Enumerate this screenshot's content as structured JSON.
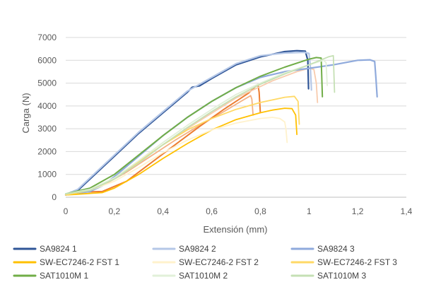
{
  "chart_data": {
    "type": "line",
    "title": "",
    "xlabel": "Extensión (mm)",
    "ylabel": "Carga (N)",
    "xlim": [
      0,
      1.4
    ],
    "ylim": [
      0,
      7000
    ],
    "xticks": [
      "0",
      "0,2",
      "0,4",
      "0,6",
      "0,8",
      "1",
      "1,2",
      "1,4"
    ],
    "xtick_values": [
      0,
      0.2,
      0.4,
      0.6,
      0.8,
      1.0,
      1.2,
      1.4
    ],
    "yticks": [
      "0",
      "1000",
      "2000",
      "3000",
      "4000",
      "5000",
      "6000",
      "7000"
    ],
    "ytick_values": [
      0,
      1000,
      2000,
      3000,
      4000,
      5000,
      6000,
      7000
    ],
    "grid": "horizontal",
    "legend_position": "bottom",
    "series": [
      {
        "name": "SA9824 1",
        "color": "#2f5597",
        "width": 2.2,
        "x": [
          0,
          0.05,
          0.1,
          0.2,
          0.3,
          0.4,
          0.5,
          0.52,
          0.55,
          0.6,
          0.7,
          0.8,
          0.9,
          0.95,
          0.985,
          0.995,
          0.998
        ],
        "y": [
          100,
          300,
          800,
          1800,
          2800,
          3700,
          4600,
          4820,
          4880,
          5200,
          5800,
          6150,
          6380,
          6420,
          6400,
          6000,
          4750
        ]
      },
      {
        "name": "SA9824 2",
        "color": "#b4c7e7",
        "width": 2.2,
        "x": [
          0,
          0.05,
          0.1,
          0.2,
          0.3,
          0.4,
          0.5,
          0.55,
          0.6,
          0.7,
          0.8,
          0.9,
          0.98,
          1.0,
          1.005,
          1.01
        ],
        "y": [
          120,
          350,
          850,
          1850,
          2850,
          3750,
          4650,
          4950,
          5250,
          5850,
          6200,
          6320,
          6350,
          6300,
          5800,
          4700
        ]
      },
      {
        "name": "SA9824 3",
        "color": "#8faadc",
        "width": 2.2,
        "x": [
          0,
          0.1,
          0.15,
          0.2,
          0.3,
          0.4,
          0.5,
          0.6,
          0.7,
          0.8,
          0.9,
          1.0,
          1.1,
          1.2,
          1.25,
          1.27,
          1.275,
          1.28
        ],
        "y": [
          100,
          250,
          500,
          900,
          1800,
          2700,
          3500,
          4200,
          4800,
          5250,
          5500,
          5650,
          5800,
          6000,
          6020,
          5950,
          5200,
          4400
        ]
      },
      {
        "name": "SW-EC7246-2 FST 1",
        "color": "#ffc000",
        "width": 1.8,
        "x": [
          0,
          0.15,
          0.2,
          0.3,
          0.4,
          0.5,
          0.6,
          0.7,
          0.8,
          0.85,
          0.9,
          0.93,
          0.945,
          0.95
        ],
        "y": [
          100,
          200,
          400,
          1000,
          1700,
          2350,
          2950,
          3400,
          3700,
          3820,
          3900,
          3880,
          3600,
          2750
        ]
      },
      {
        "name": "SW-EC7246-2 FST 2",
        "color": "#fff2cc",
        "width": 1.8,
        "x": [
          0,
          0.1,
          0.2,
          0.3,
          0.4,
          0.5,
          0.6,
          0.7,
          0.8,
          0.85,
          0.88,
          0.9,
          0.905,
          0.91
        ],
        "y": [
          100,
          300,
          700,
          1300,
          1950,
          2500,
          2950,
          3250,
          3450,
          3500,
          3450,
          3300,
          3000,
          2400
        ]
      },
      {
        "name": "SW-EC7246-2 FST 3",
        "color": "#ffd966",
        "width": 1.8,
        "x": [
          0,
          0.1,
          0.2,
          0.3,
          0.4,
          0.5,
          0.6,
          0.7,
          0.8,
          0.9,
          0.94,
          0.955,
          0.96
        ],
        "y": [
          100,
          300,
          800,
          1550,
          2300,
          2950,
          3450,
          3850,
          4150,
          4380,
          4420,
          4200,
          3200
        ]
      },
      {
        "name": "SAT1010M 1",
        "color": "#70ad47",
        "width": 2.0,
        "x": [
          0,
          0.1,
          0.2,
          0.3,
          0.4,
          0.5,
          0.6,
          0.7,
          0.8,
          0.9,
          1.0,
          1.03,
          1.05,
          1.055
        ],
        "y": [
          150,
          400,
          1000,
          1850,
          2700,
          3500,
          4200,
          4800,
          5300,
          5700,
          6050,
          6120,
          6100,
          4400
        ]
      },
      {
        "name": "SAT1010M 2",
        "color": "#e2f0d9",
        "width": 1.8,
        "x": [
          0,
          0.1,
          0.2,
          0.3,
          0.4,
          0.5,
          0.6,
          0.7,
          0.8,
          0.9,
          1.0,
          1.06,
          1.07,
          1.075
        ],
        "y": [
          150,
          350,
          850,
          1600,
          2400,
          3150,
          3850,
          4500,
          5000,
          5450,
          5800,
          6000,
          5900,
          4900
        ]
      },
      {
        "name": "SAT1010M 3",
        "color": "#c5e0b4",
        "width": 1.8,
        "x": [
          0,
          0.1,
          0.2,
          0.3,
          0.4,
          0.5,
          0.6,
          0.7,
          0.8,
          0.9,
          1.0,
          1.08,
          1.1,
          1.105
        ],
        "y": [
          150,
          300,
          800,
          1500,
          2300,
          3050,
          3750,
          4400,
          4950,
          5400,
          5800,
          6150,
          6200,
          4600
        ]
      }
    ],
    "extra_traces": [
      {
        "color": "#f4b183",
        "width": 1.8,
        "x": [
          0.05,
          0.15,
          0.25,
          0.35,
          0.45,
          0.55,
          0.65,
          0.72,
          0.76,
          0.765,
          0.77
        ],
        "y": [
          250,
          500,
          1100,
          1800,
          2500,
          3150,
          3750,
          4200,
          4450,
          4300,
          3600
        ]
      },
      {
        "color": "#ed7d31",
        "width": 2.0,
        "x": [
          0,
          0.05,
          0.15,
          0.25,
          0.35,
          0.45,
          0.55,
          0.65,
          0.75,
          0.79,
          0.795,
          0.8
        ],
        "y": [
          100,
          220,
          250,
          700,
          1500,
          2300,
          3100,
          3850,
          4550,
          4950,
          4600,
          3700
        ]
      },
      {
        "color": "#f8cbad",
        "width": 1.8,
        "x": [
          0.4,
          0.55,
          0.7,
          0.85,
          0.95,
          1.0,
          1.02,
          1.03,
          1.035
        ],
        "y": [
          2300,
          3350,
          4350,
          5100,
          5500,
          5650,
          5600,
          5000,
          4150
        ]
      }
    ]
  }
}
